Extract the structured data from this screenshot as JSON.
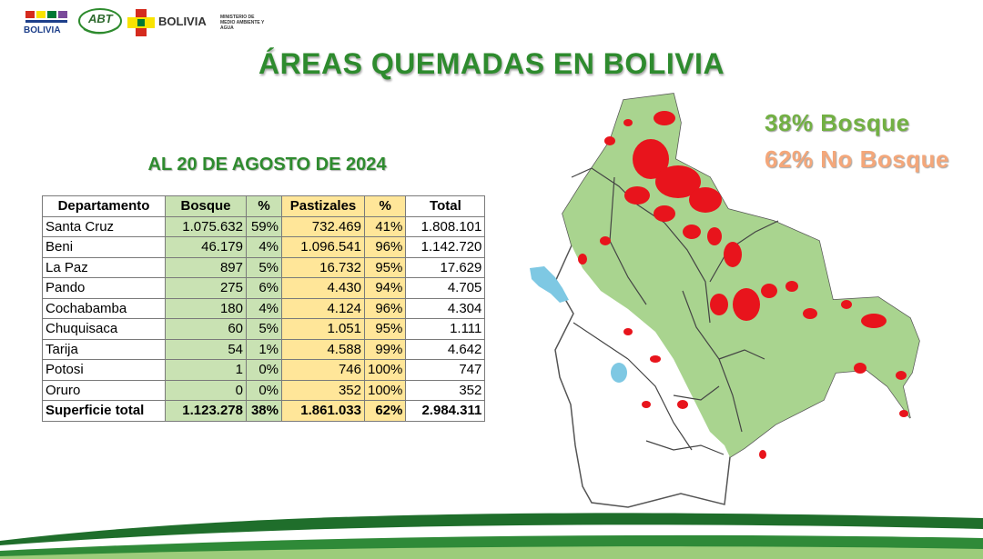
{
  "header": {
    "logo1_text": "BOLIVIA",
    "logo2_text": "ABT",
    "logo3_text": "BOLIVIA",
    "logo3_sub": "MINISTERIO DE MEDIO AMBIENTE Y AGUA"
  },
  "title": "ÁREAS QUEMADAS EN BOLIVIA",
  "subtitle": "AL 20 DE AGOSTO DE 2024",
  "table": {
    "headers": [
      "Departamento",
      "Bosque",
      "%",
      "Pastizales",
      "%",
      "Total"
    ],
    "rows": [
      {
        "dep": "Santa Cruz",
        "bosque": "1.075.632",
        "p1": "59%",
        "pastizales": "732.469",
        "p2": "41%",
        "total": "1.808.101"
      },
      {
        "dep": "Beni",
        "bosque": "46.179",
        "p1": "4%",
        "pastizales": "1.096.541",
        "p2": "96%",
        "total": "1.142.720"
      },
      {
        "dep": "La Paz",
        "bosque": "897",
        "p1": "5%",
        "pastizales": "16.732",
        "p2": "95%",
        "total": "17.629"
      },
      {
        "dep": "Pando",
        "bosque": "275",
        "p1": "6%",
        "pastizales": "4.430",
        "p2": "94%",
        "total": "4.705"
      },
      {
        "dep": "Cochabamba",
        "bosque": "180",
        "p1": "4%",
        "pastizales": "4.124",
        "p2": "96%",
        "total": "4.304"
      },
      {
        "dep": "Chuquisaca",
        "bosque": "60",
        "p1": "5%",
        "pastizales": "1.051",
        "p2": "95%",
        "total": "1.111"
      },
      {
        "dep": "Tarija",
        "bosque": "54",
        "p1": "1%",
        "pastizales": "4.588",
        "p2": "99%",
        "total": "4.642"
      },
      {
        "dep": "Potosi",
        "bosque": "1",
        "p1": "0%",
        "pastizales": "746",
        "p2": "100%",
        "total": "747"
      },
      {
        "dep": "Oruro",
        "bosque": "0",
        "p1": "0%",
        "pastizales": "352",
        "p2": "100%",
        "total": "352"
      }
    ],
    "total_row": {
      "dep": "Superficie total",
      "bosque": "1.123.278",
      "p1": "38%",
      "pastizales": "1.861.033",
      "p2": "62%",
      "total": "2.984.311"
    }
  },
  "summary": {
    "bosque": "38% Bosque",
    "no_bosque": "62% No Bosque"
  },
  "colors": {
    "title_green": "#2e8b2e",
    "bosque_green": "#72b043",
    "no_bosque_orange": "#f4a77a",
    "bosque_cell": "#c9e2b3",
    "pastizal_cell": "#ffe699",
    "map_forest": "#a9d48f",
    "map_fire": "#e8141c",
    "map_lake": "#7ec8e3"
  }
}
